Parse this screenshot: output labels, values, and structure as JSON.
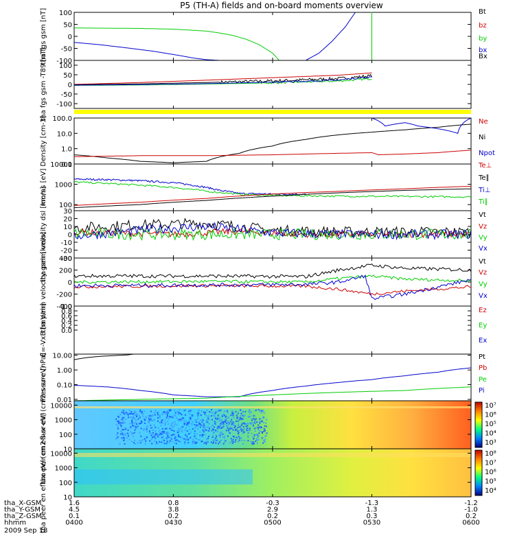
{
  "title": "P5 (TH-A) fields and on-board moments overview",
  "colors": {
    "black": "#000000",
    "red": "#cc0000",
    "green": "#00cc00",
    "blue": "#0000cc",
    "yellow": "#ffff00"
  },
  "chart_data": [
    {
      "type": "line",
      "ylabel": "tha fgs gsm [nT]",
      "ylim": [
        -100,
        100
      ],
      "yticks": [
        "100",
        "50",
        "0",
        "-50",
        "-100"
      ],
      "legend": [
        {
          "label": "Bt",
          "color": "black"
        },
        {
          "label": "bz",
          "color": "red"
        },
        {
          "label": "by",
          "color": "green"
        },
        {
          "label": "bx",
          "color": "blue"
        },
        {
          "label": "Bx",
          "color": "black"
        }
      ],
      "series": [
        {
          "name": "by",
          "color": "green",
          "x": [
            0,
            5,
            10,
            15,
            20,
            22,
            24,
            26,
            28,
            30,
            31
          ],
          "y": [
            35,
            34,
            33,
            30,
            22,
            14,
            4,
            -12,
            -35,
            -70,
            -100
          ]
        },
        {
          "name": "bx",
          "color": "blue",
          "x": [
            0,
            4,
            8,
            12,
            16,
            18,
            20,
            22
          ],
          "y": [
            -25,
            -35,
            -48,
            -62,
            -80,
            -90,
            -97,
            -100
          ]
        },
        {
          "name": "bx",
          "color": "blue",
          "x": [
            35,
            37,
            39,
            41,
            42.5
          ],
          "y": [
            -100,
            -70,
            -20,
            40,
            100
          ]
        },
        {
          "name": "by",
          "color": "green",
          "x": [
            45,
            45,
            45.05,
            45.05
          ],
          "y": [
            -100,
            100,
            100,
            -100
          ]
        }
      ]
    },
    {
      "type": "line",
      "ylabel": "tha fgs gsm -T89 [nT]",
      "ylim": [
        -125,
        125
      ],
      "yticks": [
        "100",
        "50",
        "0",
        "-50",
        "-100"
      ],
      "legend": [],
      "series": [
        {
          "name": "red",
          "color": "red",
          "x": [
            0,
            10,
            20,
            30,
            40,
            45
          ],
          "y": [
            0,
            10,
            22,
            35,
            48,
            60
          ]
        },
        {
          "name": "black",
          "color": "black",
          "x": [
            0,
            10,
            20,
            30,
            40,
            45
          ],
          "y": [
            -2,
            3,
            10,
            18,
            30,
            45
          ],
          "noise": 8,
          "from": 22
        },
        {
          "name": "green",
          "color": "green",
          "x": [
            0,
            10,
            20,
            30,
            40,
            45
          ],
          "y": [
            -5,
            -3,
            2,
            8,
            18,
            30
          ],
          "noise": 5,
          "from": 28
        },
        {
          "name": "blue",
          "color": "blue",
          "x": [
            0,
            10,
            20,
            30,
            40,
            45
          ],
          "y": [
            -4,
            -1,
            4,
            12,
            22,
            38
          ],
          "noise": 4,
          "from": 30
        }
      ]
    },
    {
      "type": "line",
      "ylabel": "Density [cm-3]",
      "yscale": "log",
      "ylim": [
        0.1,
        100
      ],
      "yticks": [
        "100.0",
        "10.0",
        "1.0",
        "0.1"
      ],
      "legend": [
        {
          "label": "Ne",
          "color": "red"
        },
        {
          "label": "Ni",
          "color": "black"
        },
        {
          "label": "Npot",
          "color": "blue"
        }
      ],
      "series": [
        {
          "name": "Ni",
          "color": "black",
          "x": [
            0,
            5,
            10,
            15,
            20,
            25,
            30,
            35,
            40,
            45,
            50,
            55,
            60
          ],
          "y": [
            0.4,
            0.25,
            0.15,
            0.12,
            0.15,
            0.5,
            1.5,
            4,
            8,
            12,
            17,
            25,
            40
          ]
        },
        {
          "name": "Ne",
          "color": "red",
          "x": [
            0,
            10,
            20,
            30,
            40,
            45,
            46,
            50,
            55,
            60
          ],
          "y": [
            0.3,
            0.35,
            0.35,
            0.4,
            0.5,
            0.55,
            0.4,
            0.45,
            0.55,
            0.8
          ]
        },
        {
          "name": "Npot",
          "color": "blue",
          "x": [
            45,
            47,
            50,
            52,
            55,
            58,
            60
          ],
          "y": [
            100,
            30,
            50,
            30,
            20,
            10,
            100
          ]
        }
      ]
    },
    {
      "type": "line",
      "ylabel": "moms [eV]",
      "yscale": "log",
      "ylim": [
        50,
        10000
      ],
      "yticks": [
        "10000",
        "1000",
        "100"
      ],
      "legend": [
        {
          "label": "Te⊥",
          "color": "red"
        },
        {
          "label": "Te∥",
          "color": "black"
        },
        {
          "label": "Ti⊥",
          "color": "blue"
        },
        {
          "label": "Ti∥",
          "color": "green"
        }
      ],
      "series": [
        {
          "name": "Ti⊥",
          "color": "blue",
          "x": [
            0,
            5,
            10,
            15,
            18,
            22,
            25,
            30,
            35
          ],
          "y": [
            1800,
            1700,
            1500,
            1200,
            900,
            500,
            350,
            330,
            320
          ],
          "noise": 0.1
        },
        {
          "name": "Ti∥",
          "color": "green",
          "x": [
            0,
            5,
            10,
            15,
            20,
            25,
            30,
            40,
            50,
            60
          ],
          "y": [
            1300,
            1100,
            900,
            700,
            450,
            320,
            280,
            260,
            250,
            240
          ],
          "noise": 0.1
        },
        {
          "name": "Te⊥",
          "color": "red",
          "x": [
            0,
            10,
            20,
            30,
            40,
            50,
            60
          ],
          "y": [
            90,
            130,
            200,
            330,
            450,
            600,
            800
          ]
        },
        {
          "name": "Te∥",
          "color": "black",
          "x": [
            0,
            10,
            20,
            30,
            40,
            50,
            60
          ],
          "y": [
            70,
            100,
            160,
            260,
            380,
            500,
            600
          ]
        }
      ]
    },
    {
      "type": "line",
      "ylabel": "tha peim velocity dsl [km/s]",
      "ylim": [
        -30,
        30
      ],
      "yticks": [
        "30",
        "20",
        "10",
        "0",
        "-10",
        "-20",
        "-30"
      ],
      "legend": [
        {
          "label": "Vt",
          "color": "black"
        },
        {
          "label": "Vz",
          "color": "red"
        },
        {
          "label": "Vy",
          "color": "green"
        },
        {
          "label": "Vx",
          "color": "blue"
        }
      ],
      "series": [
        {
          "name": "Vt",
          "color": "black",
          "x": [
            0,
            10,
            15,
            20,
            25,
            30,
            40,
            60
          ],
          "y": [
            8,
            12,
            13,
            14,
            10,
            5,
            3,
            3
          ],
          "noise": 7
        },
        {
          "name": "Vz",
          "color": "red",
          "x": [
            0,
            15,
            25,
            35,
            60
          ],
          "y": [
            3,
            0,
            4,
            0,
            0
          ],
          "noise": 4
        },
        {
          "name": "Vy",
          "color": "green",
          "x": [
            0,
            10,
            20,
            30,
            60
          ],
          "y": [
            1,
            0,
            0,
            0,
            0
          ],
          "noise": 7
        },
        {
          "name": "Vx",
          "color": "blue",
          "x": [
            0,
            10,
            15,
            20,
            30,
            40,
            60
          ],
          "y": [
            -2,
            5,
            8,
            10,
            2,
            0,
            0
          ],
          "noise": 6
        }
      ]
    },
    {
      "type": "line",
      "ylabel": "tha peim velocity gsm [km/s]",
      "ylim": [
        -400,
        400
      ],
      "yticks": [
        "400",
        "200",
        "0",
        "-200",
        "-400"
      ],
      "legend": [
        {
          "label": "Vt",
          "color": "black"
        },
        {
          "label": "Vz",
          "color": "red"
        },
        {
          "label": "Vy",
          "color": "green"
        },
        {
          "label": "Vx",
          "color": "blue"
        }
      ],
      "series": [
        {
          "name": "Vt",
          "color": "black",
          "x": [
            0,
            20,
            35,
            40,
            45,
            50,
            60
          ],
          "y": [
            100,
            100,
            90,
            200,
            280,
            230,
            200
          ],
          "noise": 30
        },
        {
          "name": "Vz",
          "color": "red",
          "x": [
            0,
            20,
            35,
            40,
            45,
            50,
            60
          ],
          "y": [
            -80,
            -60,
            -70,
            -120,
            -200,
            -150,
            -80
          ],
          "noise": 25
        },
        {
          "name": "Vy",
          "color": "green",
          "x": [
            0,
            20,
            35,
            40,
            45,
            50,
            60
          ],
          "y": [
            0,
            10,
            0,
            60,
            100,
            50,
            20
          ],
          "noise": 25
        },
        {
          "name": "Vx",
          "color": "blue",
          "x": [
            0,
            20,
            35,
            40,
            44,
            45,
            50,
            60
          ],
          "y": [
            -60,
            -50,
            -40,
            0,
            100,
            -280,
            -200,
            40
          ],
          "noise": 30
        }
      ]
    },
    {
      "type": "line",
      "ylabel": "E=-VxB [mV/m]",
      "ylim": [
        -1,
        1
      ],
      "yticks": [
        "1.0",
        "0.8",
        "0.6",
        "0.4",
        "0.2",
        "0.0"
      ],
      "legend": [
        {
          "label": "Ez",
          "color": "red"
        },
        {
          "label": "Ey",
          "color": "green"
        },
        {
          "label": "Ex",
          "color": "blue"
        }
      ],
      "series": []
    },
    {
      "type": "line",
      "ylabel": "Pressure [nPa]",
      "yscale": "log",
      "ylim": [
        0.008,
        12
      ],
      "yticks": [
        "10.00",
        "1.00",
        "0.10",
        "0.01"
      ],
      "legend": [
        {
          "label": "Pt",
          "color": "black"
        },
        {
          "label": "Pb",
          "color": "red"
        },
        {
          "label": "Pe",
          "color": "green"
        },
        {
          "label": "Pi",
          "color": "blue"
        }
      ],
      "series": [
        {
          "name": "Pt",
          "color": "black",
          "x": [
            0,
            2,
            4,
            6,
            8,
            9
          ],
          "y": [
            5,
            7,
            8.5,
            9.5,
            10.5,
            12
          ]
        },
        {
          "name": "Pi",
          "color": "blue",
          "x": [
            0,
            5,
            10,
            15,
            20,
            25,
            30,
            35,
            40,
            45,
            50,
            55,
            60
          ],
          "y": [
            0.09,
            0.07,
            0.04,
            0.02,
            0.015,
            0.015,
            0.04,
            0.08,
            0.14,
            0.22,
            0.4,
            0.7,
            1.4
          ]
        },
        {
          "name": "Pe",
          "color": "green",
          "x": [
            0,
            10,
            20,
            30,
            40,
            50,
            60
          ],
          "y": [
            0.008,
            0.01,
            0.012,
            0.02,
            0.03,
            0.04,
            0.07
          ]
        }
      ]
    },
    {
      "type": "heatmap",
      "ylabel": "tha peir en eflux eV/ (cm2-s-sr-eV)",
      "yscale": "log",
      "ylim": [
        10,
        20000
      ],
      "yticks": [
        "10000",
        "1000",
        "100",
        "10"
      ],
      "colorbar": [
        "10⁷",
        "10⁶",
        "10⁵",
        "10⁴",
        "10³"
      ]
    },
    {
      "type": "heatmap",
      "ylabel": "tha peer en eflux eV/ (cm2-s-sr-eV)",
      "yscale": "log",
      "ylim": [
        10,
        20000
      ],
      "yticks": [
        "10000",
        "1000",
        "100",
        "10"
      ],
      "colorbar": [
        "10⁸",
        "10⁷",
        "10⁶",
        "10⁵",
        "10⁴"
      ]
    }
  ],
  "xaxis": {
    "rows": [
      {
        "label": "tha_X-GSM",
        "values": [
          "1.6",
          "0.8",
          "-0.3",
          "-1.3",
          "-1.2"
        ]
      },
      {
        "label": "tha_Y-GSM",
        "values": [
          "4.5",
          "3.8",
          "2.9",
          "1.3",
          "-1.0"
        ]
      },
      {
        "label": "tha_Z-GSM",
        "values": [
          "0.1",
          "0.2",
          "0.2",
          "0.3",
          "0.2"
        ]
      },
      {
        "label": "hhmm",
        "values": [
          "0400",
          "0430",
          "0500",
          "0530",
          "0600"
        ]
      }
    ],
    "date": "2009 Sep 18"
  }
}
